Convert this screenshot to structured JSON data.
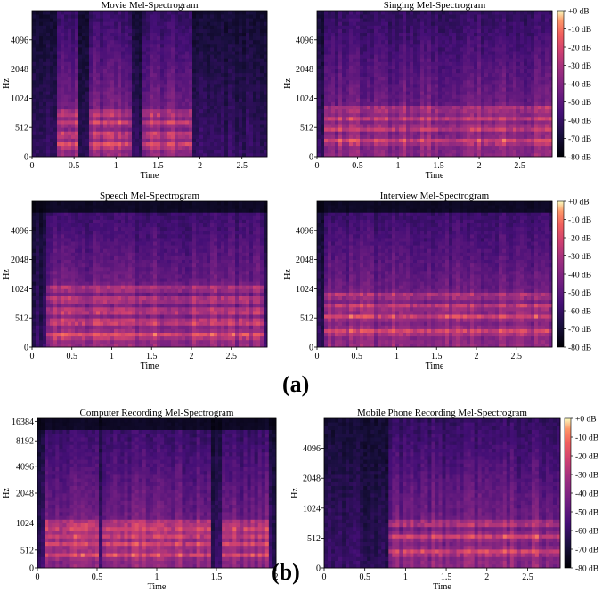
{
  "figure": {
    "panel_labels": [
      "(a)",
      "(b)"
    ]
  },
  "chart_data": [
    {
      "type": "heatmap",
      "title": "Movie Mel-Spectrogram",
      "xlabel": "Time",
      "ylabel": "Hz",
      "xticks": [
        0,
        0.5,
        1,
        1.5,
        2,
        2.5
      ],
      "xlim": [
        0,
        2.8
      ],
      "yticks": [
        "0",
        "512",
        "1024",
        "2048",
        "4096"
      ],
      "colorbar": null,
      "bright_bands_hz": [
        150,
        300,
        512,
        700
      ],
      "activity": [
        [
          0.3,
          0.55
        ],
        [
          0.7,
          1.2
        ],
        [
          1.3,
          1.9
        ]
      ]
    },
    {
      "type": "heatmap",
      "title": "Singing Mel-Spectrogram",
      "xlabel": "Time",
      "ylabel": "Hz",
      "xticks": [
        0,
        0.5,
        1,
        1.5,
        2,
        2.5
      ],
      "xlim": [
        0,
        2.9
      ],
      "yticks": [
        "0",
        "512",
        "1024",
        "2048",
        "4096"
      ],
      "colorbar": [
        "+0 dB",
        "-10 dB",
        "-20 dB",
        "-30 dB",
        "-40 dB",
        "-50 dB",
        "-60 dB",
        "-70 dB",
        "-80 dB"
      ],
      "bright_bands_hz": [
        200,
        400,
        600,
        800
      ],
      "activity": [
        [
          0.1,
          2.9
        ]
      ]
    },
    {
      "type": "heatmap",
      "title": "Speech Mel-Spectrogram",
      "xlabel": "Time",
      "ylabel": "Hz",
      "xticks": [
        0,
        0.5,
        1,
        1.5,
        2,
        2.5
      ],
      "xlim": [
        0,
        2.95
      ],
      "yticks": [
        "0",
        "512",
        "1024",
        "2048",
        "4096"
      ],
      "colorbar": null,
      "bright_bands_hz": [
        150,
        350,
        550,
        800,
        1100
      ],
      "activity": [
        [
          0.2,
          2.9
        ]
      ]
    },
    {
      "type": "heatmap",
      "title": "Interview Mel-Spectrogram",
      "xlabel": "Time",
      "ylabel": "Hz",
      "xticks": [
        0,
        0.5,
        1,
        1.5,
        2,
        2.5
      ],
      "xlim": [
        0,
        2.95
      ],
      "yticks": [
        "0",
        "512",
        "1024",
        "2048",
        "4096"
      ],
      "colorbar": [
        "+0 dB",
        "-10 dB",
        "-20 dB",
        "-30 dB",
        "-40 dB",
        "-50 dB",
        "-60 dB",
        "-70 dB",
        "-80 dB"
      ],
      "bright_bands_hz": [
        200,
        450,
        650,
        900
      ],
      "activity": [
        [
          0.1,
          2.95
        ]
      ]
    },
    {
      "type": "heatmap",
      "title": "Computer Recording Mel-Spectrogram",
      "xlabel": "Time",
      "ylabel": "Hz",
      "xticks": [
        0,
        0.5,
        1,
        1.5,
        2
      ],
      "xlim": [
        0,
        2.0
      ],
      "yticks": [
        "0",
        "512",
        "1024",
        "2048",
        "4096",
        "8192",
        "16384"
      ],
      "colorbar": null,
      "bright_bands_hz": [
        250,
        500,
        750,
        1000,
        1250
      ],
      "activity": [
        [
          0.05,
          0.5
        ],
        [
          0.55,
          1.45
        ],
        [
          1.55,
          1.95
        ]
      ]
    },
    {
      "type": "heatmap",
      "title": "Mobile Phone Recording Mel-Spectrogram",
      "xlabel": "Time",
      "ylabel": "Hz",
      "xticks": [
        0,
        0.5,
        1,
        1.5,
        2,
        2.5
      ],
      "xlim": [
        0,
        2.9
      ],
      "yticks": [
        "0",
        "512",
        "1024",
        "2048",
        "4096"
      ],
      "colorbar": [
        "+0 dB",
        "-10 dB",
        "-20 dB",
        "-30 dB",
        "-40 dB",
        "-50 dB",
        "-60 dB",
        "-70 dB",
        "-80 dB"
      ],
      "bright_bands_hz": [
        200,
        450,
        700
      ],
      "activity": [
        [
          0.8,
          2.9
        ]
      ]
    }
  ]
}
